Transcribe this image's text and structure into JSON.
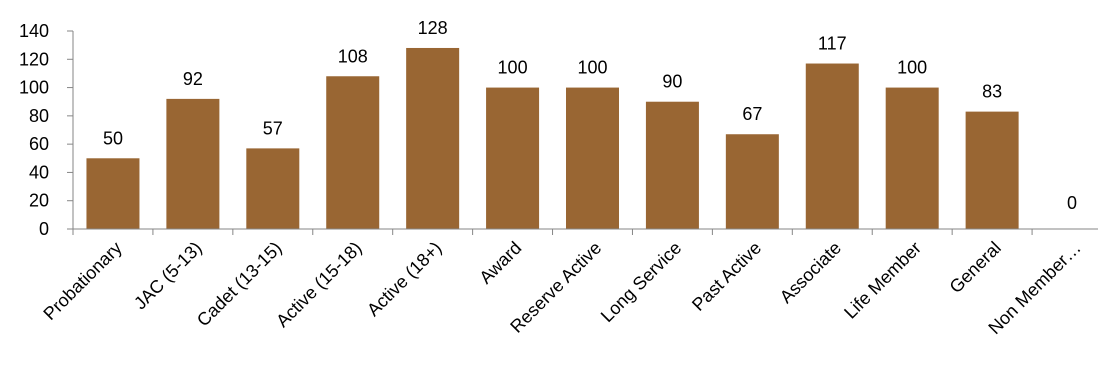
{
  "chart_data": {
    "type": "bar",
    "categories": [
      "Probationary",
      "JAC (5-13)",
      "Cadet (13-15)",
      "Active (15-18)",
      "Active (18+)",
      "Award",
      "Reserve Active",
      "Long Service",
      "Past Active",
      "Associate",
      "Life Member",
      "General",
      "Non Member…"
    ],
    "values": [
      50,
      92,
      57,
      108,
      128,
      100,
      100,
      90,
      67,
      117,
      100,
      83,
      0
    ],
    "title": "",
    "xlabel": "",
    "ylabel": "",
    "ylim": [
      0,
      140
    ],
    "yticks": [
      0,
      20,
      40,
      60,
      80,
      100,
      120,
      140
    ],
    "grid": false,
    "legend": "none",
    "bar_color": "#996633",
    "axis_color": "#868686"
  }
}
